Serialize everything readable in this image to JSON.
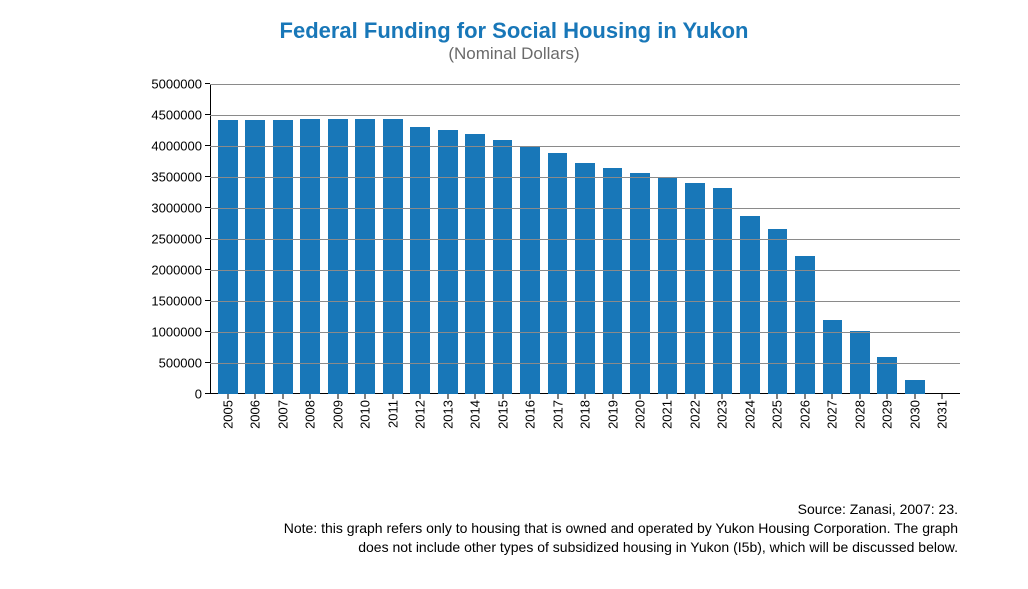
{
  "chart": {
    "type": "bar",
    "title": "Federal Funding for Social Housing in Yukon",
    "subtitle": "(Nominal Dollars)",
    "title_color": "#1877b8",
    "title_fontsize": 22,
    "title_fontweight": 700,
    "subtitle_color": "#6a6a6a",
    "subtitle_fontsize": 17,
    "background_color": "#ffffff",
    "axis_color": "#000000",
    "grid_color": "#8a8a8a",
    "grid_width": 0.5,
    "tick_label_color": "#000000",
    "tick_label_fontsize": 13,
    "x_label_rotation": -90,
    "bar_color": "#1877b8",
    "bar_width": 0.72,
    "ylim": [
      0,
      5000000
    ],
    "ytick_step": 500000,
    "yticks": [
      {
        "value": 0,
        "label": "0"
      },
      {
        "value": 500000,
        "label": "500000"
      },
      {
        "value": 1000000,
        "label": "1000000"
      },
      {
        "value": 1500000,
        "label": "1500000"
      },
      {
        "value": 2000000,
        "label": "2000000"
      },
      {
        "value": 2500000,
        "label": "2500000"
      },
      {
        "value": 3000000,
        "label": "3000000"
      },
      {
        "value": 3500000,
        "label": "3500000"
      },
      {
        "value": 4000000,
        "label": "4000000"
      },
      {
        "value": 4500000,
        "label": "4500000"
      },
      {
        "value": 5000000,
        "label": "5000000"
      }
    ],
    "categories": [
      "2005",
      "2006",
      "2007",
      "2008",
      "2009",
      "2010",
      "2011",
      "2012",
      "2013",
      "2014",
      "2015",
      "2016",
      "2017",
      "2018",
      "2019",
      "2020",
      "2021",
      "2022",
      "2023",
      "2024",
      "2025",
      "2026",
      "2027",
      "2028",
      "2029",
      "2030",
      "2031"
    ],
    "values": [
      4420000,
      4420000,
      4420000,
      4430000,
      4430000,
      4430000,
      4440000,
      4300000,
      4260000,
      4200000,
      4100000,
      4000000,
      3880000,
      3720000,
      3650000,
      3560000,
      3500000,
      3400000,
      3320000,
      2870000,
      2660000,
      2220000,
      1200000,
      1020000,
      600000,
      220000,
      0
    ]
  },
  "footer": {
    "source": "Source:  Zanasi, 2007:  23.",
    "note_line1": "Note: this graph refers only to housing that is owned and operated by Yukon Housing Corporation.  The graph",
    "note_line2": "does not include other types of subsidized housing in Yukon (I5b), which will be discussed below.",
    "fontsize": 14,
    "color": "#000000"
  }
}
